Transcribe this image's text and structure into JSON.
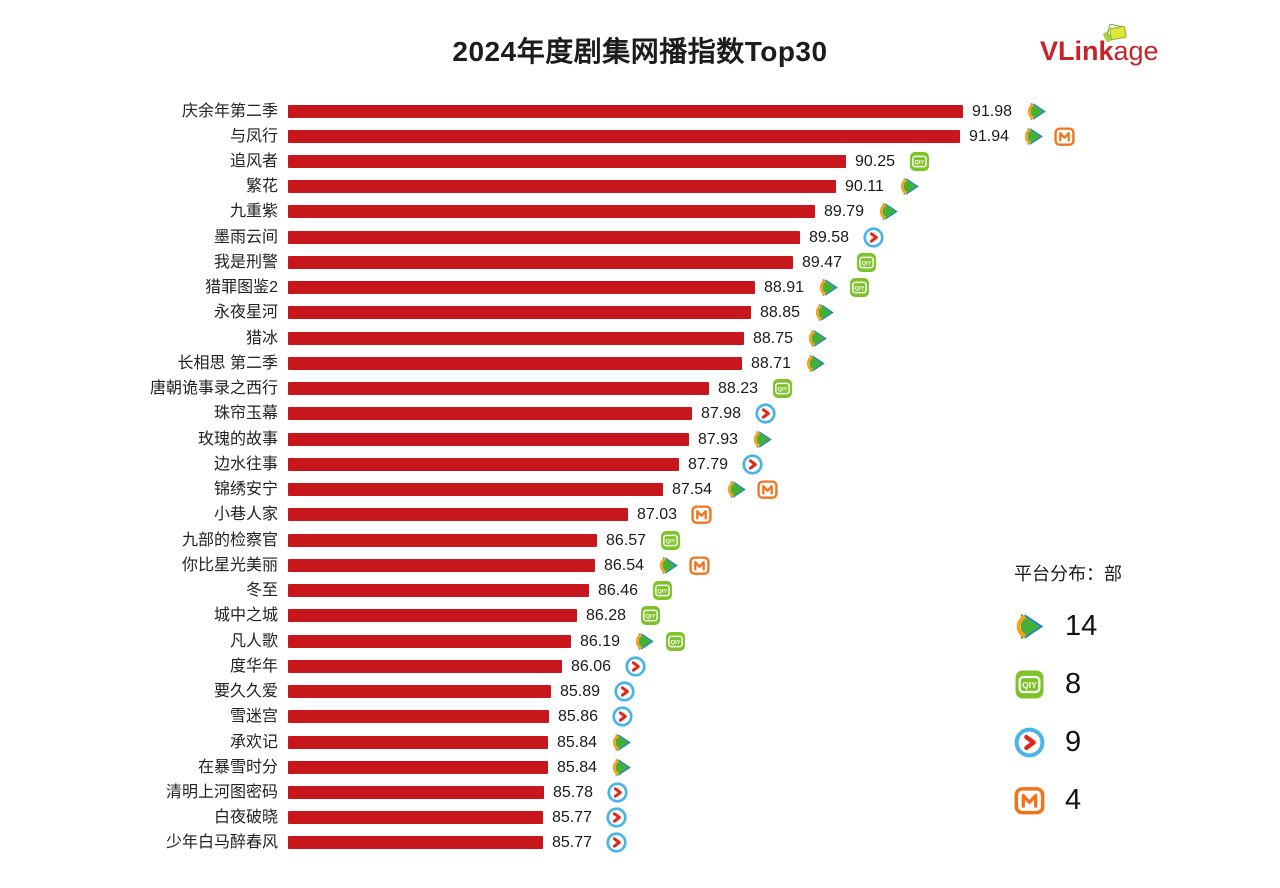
{
  "brand": {
    "bold": "VLink",
    "rest": "age",
    "color": "#c5242b",
    "cards_icon": "stacked-cards-icon"
  },
  "colors": {
    "bar": "#c8161d",
    "tencent_green": "#44b035",
    "tencent_blue": "#1c7fd6",
    "tencent_orange": "#f7a21b",
    "iqiyi_green": "#7cc327",
    "youku_blue": "#49b4e8",
    "youku_red": "#e0271c",
    "mgtv_orange": "#f0741c"
  },
  "chart_data": {
    "type": "bar",
    "orientation": "horizontal",
    "title": "2024年度剧集网播指数Top30",
    "xlabel": "",
    "ylabel": "",
    "xlim": [
      82,
      92.5
    ],
    "grid": false,
    "bar_color": "#c8161d",
    "categories": [
      "庆余年第二季",
      "与凤行",
      "追风者",
      "繁花",
      "九重紫",
      "墨雨云间",
      "我是刑警",
      "猎罪图鉴2",
      "永夜星河",
      "猎冰",
      "长相思 第二季",
      "唐朝诡事录之西行",
      "珠帘玉幕",
      "玫瑰的故事",
      "边水往事",
      "锦绣安宁",
      "小巷人家",
      "九部的检察官",
      "你比星光美丽",
      "冬至",
      "城中之城",
      "凡人歌",
      "度华年",
      "要久久爱",
      "雪迷宫",
      "承欢记",
      "在暴雪时分",
      "清明上河图密码",
      "白夜破晓",
      "少年白马醉春风"
    ],
    "values": [
      91.98,
      91.94,
      90.25,
      90.11,
      89.79,
      89.58,
      89.47,
      88.91,
      88.85,
      88.75,
      88.71,
      88.23,
      87.98,
      87.93,
      87.79,
      87.54,
      87.03,
      86.57,
      86.54,
      86.46,
      86.28,
      86.19,
      86.06,
      85.89,
      85.86,
      85.84,
      85.84,
      85.78,
      85.77,
      85.77
    ],
    "platform_icons": [
      [
        "tencent-video-icon"
      ],
      [
        "tencent-video-icon",
        "mgtv-icon"
      ],
      [
        "iqiyi-icon"
      ],
      [
        "tencent-video-icon"
      ],
      [
        "tencent-video-icon"
      ],
      [
        "youku-icon"
      ],
      [
        "iqiyi-icon"
      ],
      [
        "tencent-video-icon",
        "iqiyi-icon"
      ],
      [
        "tencent-video-icon"
      ],
      [
        "tencent-video-icon"
      ],
      [
        "tencent-video-icon"
      ],
      [
        "iqiyi-icon"
      ],
      [
        "youku-icon"
      ],
      [
        "tencent-video-icon"
      ],
      [
        "youku-icon"
      ],
      [
        "tencent-video-icon",
        "mgtv-icon"
      ],
      [
        "mgtv-icon"
      ],
      [
        "iqiyi-icon"
      ],
      [
        "tencent-video-icon",
        "mgtv-icon"
      ],
      [
        "iqiyi-icon"
      ],
      [
        "iqiyi-icon"
      ],
      [
        "tencent-video-icon",
        "iqiyi-icon"
      ],
      [
        "youku-icon"
      ],
      [
        "youku-icon"
      ],
      [
        "youku-icon"
      ],
      [
        "tencent-video-icon"
      ],
      [
        "tencent-video-icon"
      ],
      [
        "youku-icon"
      ],
      [
        "youku-icon"
      ],
      [
        "youku-icon"
      ]
    ],
    "legend": {
      "title": "平台分布：部",
      "position": "right",
      "items": [
        {
          "icon": "tencent-video-icon",
          "count": "14"
        },
        {
          "icon": "iqiyi-icon",
          "count": "8"
        },
        {
          "icon": "youku-icon",
          "count": "9"
        },
        {
          "icon": "mgtv-icon",
          "count": "4"
        }
      ]
    }
  }
}
